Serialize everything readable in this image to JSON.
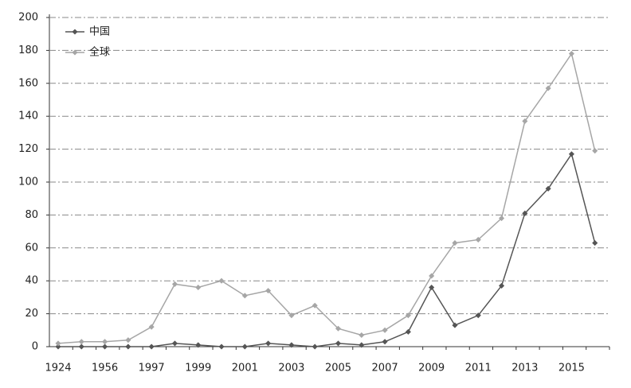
{
  "chart_data": {
    "type": "line",
    "categories": [
      "1924",
      null,
      "1956",
      null,
      "1997",
      null,
      "1999",
      null,
      "2001",
      null,
      "2003",
      null,
      "2005",
      null,
      "2007",
      null,
      "2009",
      null,
      "2011",
      null,
      "2013",
      null,
      "2015",
      null
    ],
    "series": [
      {
        "name": "中国",
        "color": "#555555",
        "values": [
          0,
          0,
          0,
          0,
          0,
          2,
          1,
          0,
          0,
          2,
          1,
          0,
          2,
          1,
          3,
          9,
          36,
          13,
          19,
          37,
          81,
          96,
          117,
          63
        ]
      },
      {
        "name": "全球",
        "color": "#a6a6a6",
        "values": [
          2,
          3,
          3,
          4,
          12,
          38,
          36,
          40,
          31,
          34,
          19,
          25,
          11,
          7,
          10,
          19,
          43,
          63,
          65,
          78,
          137,
          157,
          178,
          119
        ]
      }
    ],
    "ylim": [
      0,
      200
    ],
    "yticks": [
      0,
      20,
      40,
      60,
      80,
      100,
      120,
      140,
      160,
      180,
      200
    ],
    "grid": true,
    "legend": "top-left"
  }
}
